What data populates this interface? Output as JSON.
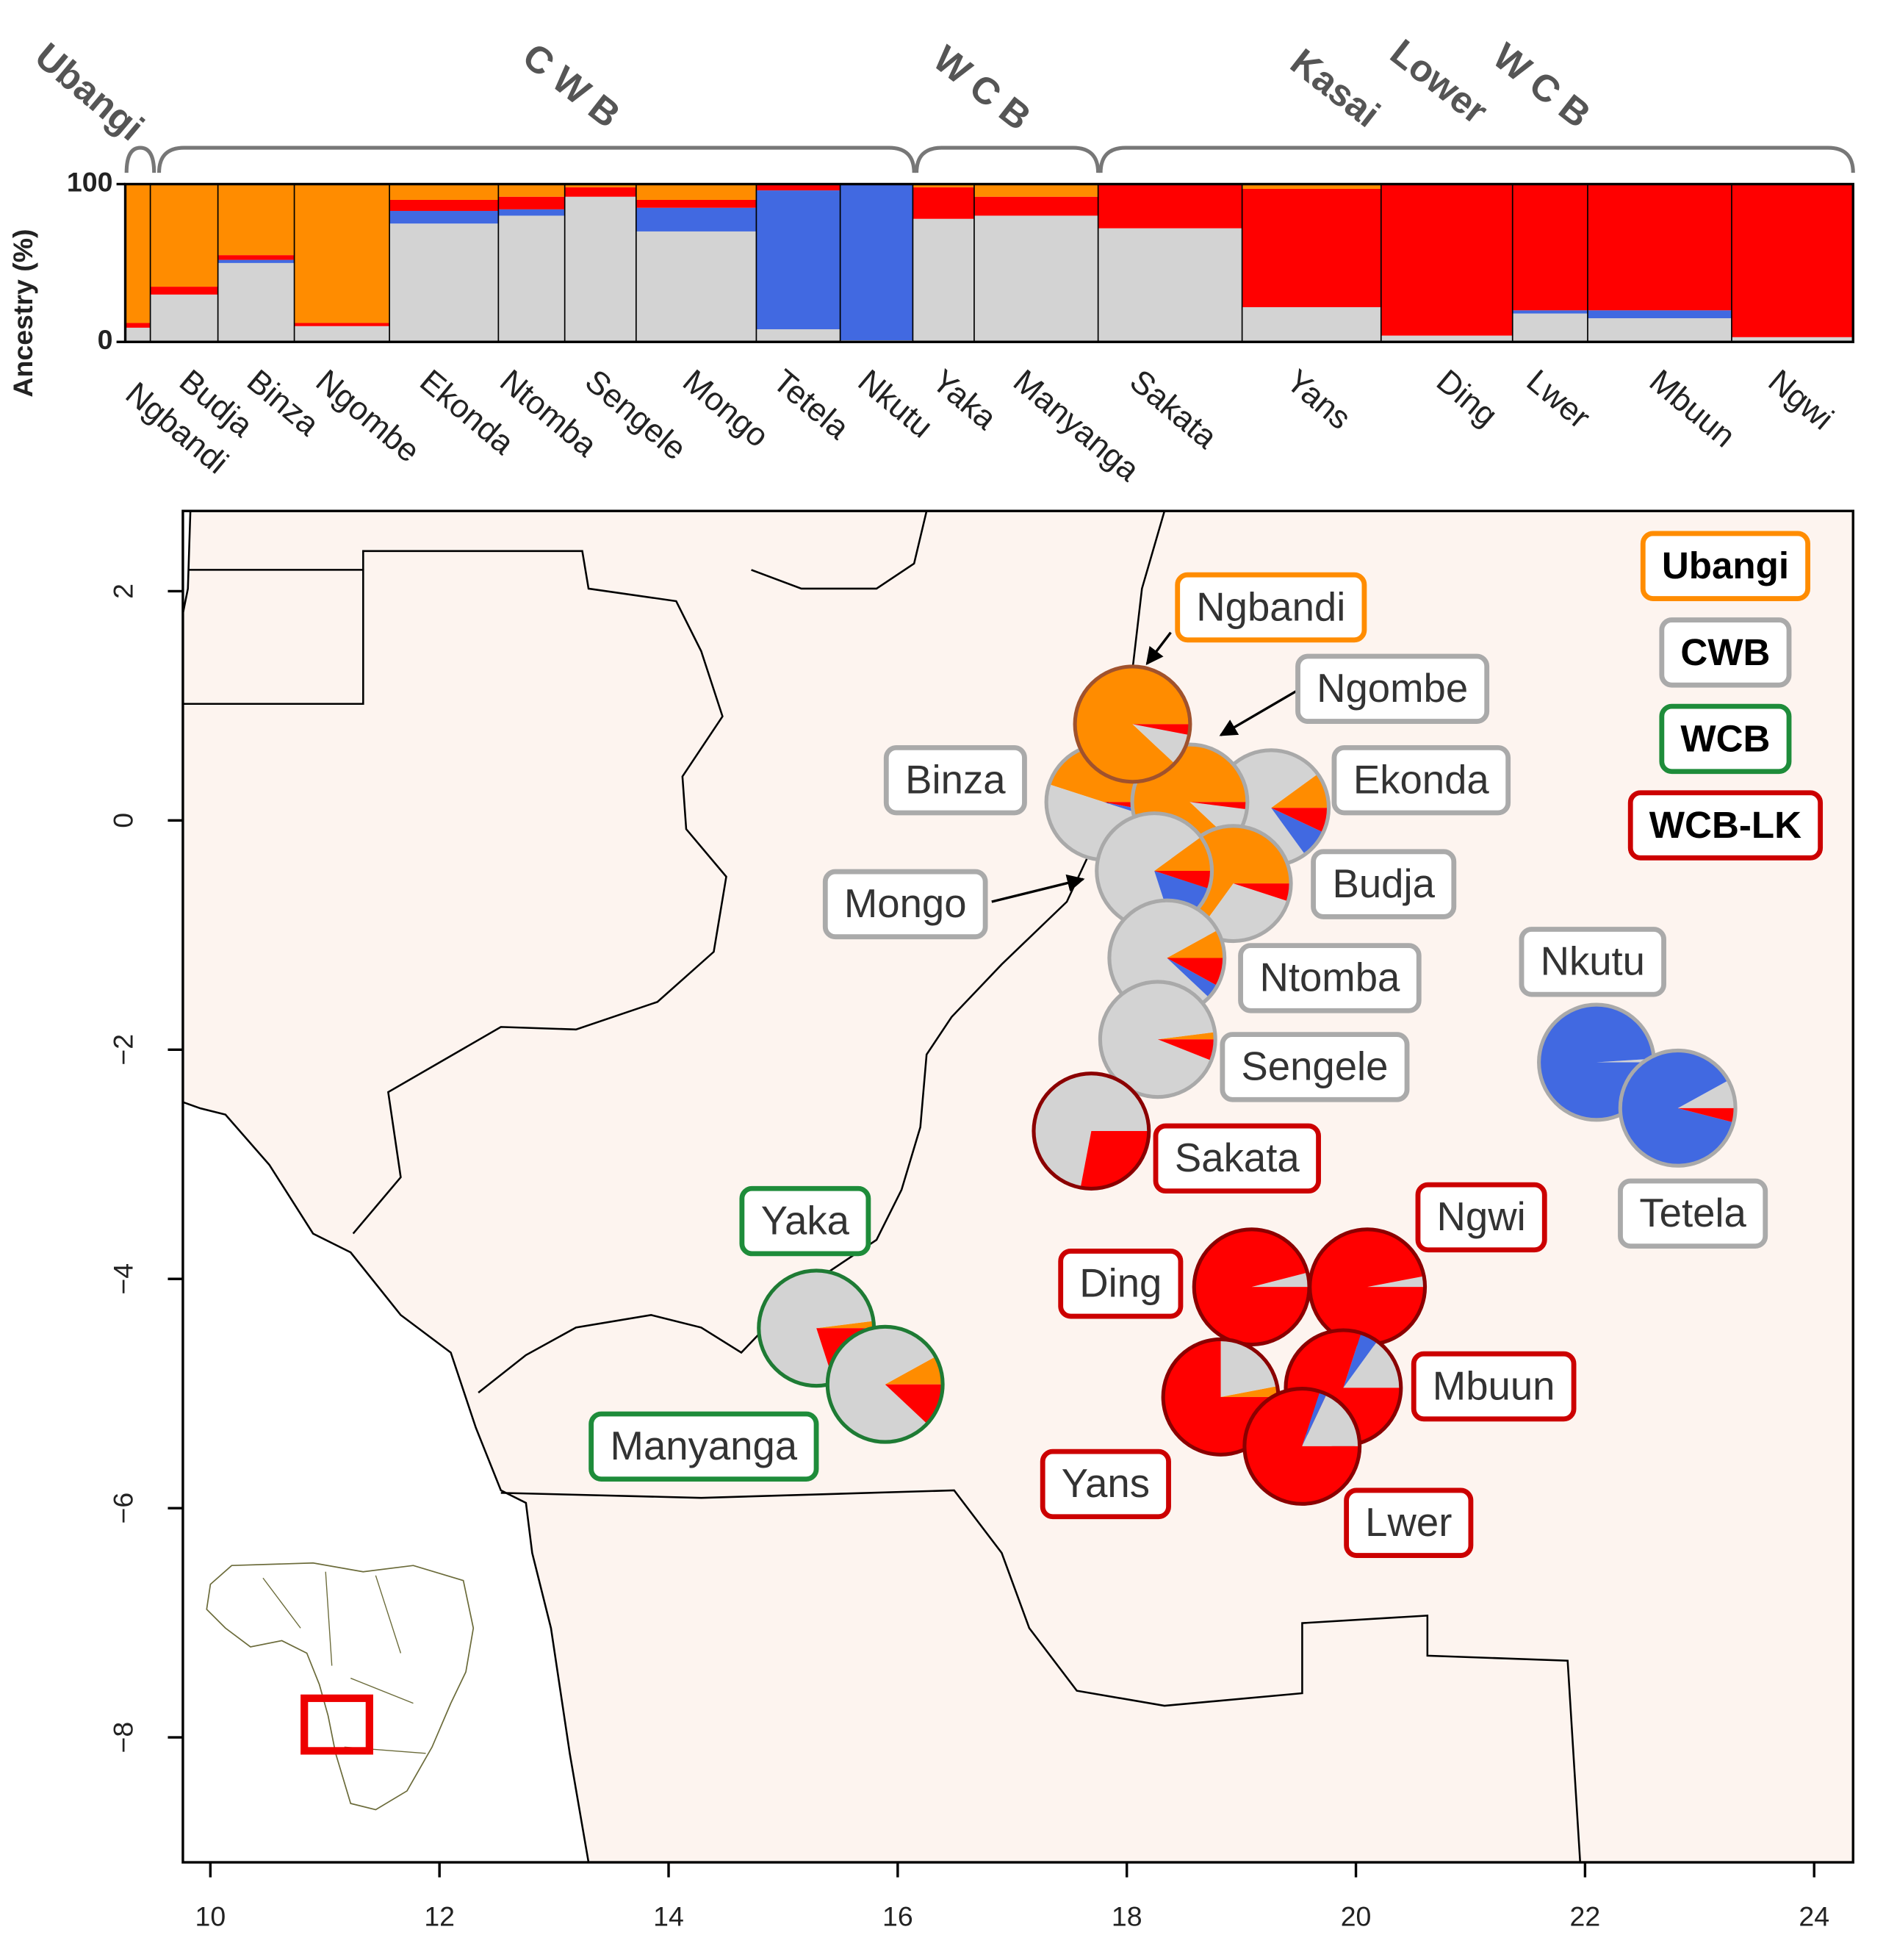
{
  "chart_data": [
    {
      "type": "stacked-bar",
      "ylabel": "Ancestry (%)",
      "ylim": [
        0,
        100
      ],
      "yticks": [
        0,
        100
      ],
      "group_labels": [
        "Ubangi",
        "C W B",
        "W C B",
        "Kasai",
        "Lower",
        "W C B"
      ],
      "categories": [
        "Ngbandi",
        "Budja",
        "Binza",
        "Ngombe",
        "Ekonda",
        "Ntomba",
        "Sengele",
        "Mongo",
        "Tetela",
        "Nkutu",
        "Yaka",
        "Manyanga",
        "Sakata",
        "Yans",
        "Ding",
        "Lwer",
        "Mbuun",
        "Ngwi"
      ],
      "series": [
        {
          "color": "#ff8c00",
          "values": [
            88,
            65,
            45,
            88,
            10,
            8,
            2,
            10,
            0,
            0,
            2,
            8,
            0,
            3,
            0,
            0,
            0,
            0
          ]
        },
        {
          "color": "#d3d3d3",
          "values": [
            9,
            30,
            50,
            10,
            75,
            80,
            92,
            70,
            8,
            1,
            78,
            80,
            72,
            22,
            4,
            18,
            15,
            3
          ]
        },
        {
          "color": "#4169e1",
          "values": [
            0,
            0,
            2,
            0,
            8,
            4,
            0,
            15,
            88,
            99,
            0,
            0,
            0,
            0,
            0,
            2,
            5,
            0
          ]
        },
        {
          "color": "#ff0000",
          "values": [
            3,
            5,
            3,
            2,
            7,
            8,
            6,
            5,
            4,
            0,
            20,
            12,
            28,
            75,
            96,
            80,
            80,
            97
          ]
        }
      ]
    },
    {
      "type": "pie-map",
      "xlim": [
        9.76,
        24.34
      ],
      "ylim": [
        -9.09,
        2.7
      ],
      "xticks": [
        10,
        12,
        14,
        16,
        18,
        20,
        22,
        24
      ],
      "yticks": [
        2,
        0,
        {
          "value": -2,
          "label": "−2"
        },
        {
          "value": -4,
          "label": "−4"
        },
        {
          "value": -6,
          "label": "−6"
        },
        {
          "value": -8,
          "label": "−8"
        }
      ],
      "x": [
        18.05,
        18.93,
        17.8,
        18.55,
        19.26,
        18.35,
        18.27,
        18.24,
        22.81,
        22.1,
        15.29,
        15.89,
        17.69,
        18.82,
        19.09,
        19.53,
        19.89,
        20.1
      ],
      "y": [
        0.84,
        -0.55,
        0.16,
        0.16,
        0.11,
        -1.2,
        -1.91,
        -0.44,
        -2.51,
        -2.11,
        -4.43,
        -4.92,
        -2.71,
        -5.03,
        -4.07,
        -5.46,
        -4.95,
        -4.07
      ],
      "pie_colors": [
        "#a0522d",
        "#a9a9a9",
        "#a9a9a9",
        "#a9a9a9",
        "#a9a9a9",
        "#a9a9a9",
        "#a9a9a9",
        "#a9a9a9",
        "#a9a9a9",
        "#a9a9a9",
        "#1e7b34",
        "#1e7b34",
        "#8b0000",
        "#8b0000",
        "#8b0000",
        "#8b0000",
        "#8b0000",
        "#8b0000"
      ],
      "box_colors": [
        "#ff8c00",
        "#aaaaaa",
        "#aaaaaa",
        "#aaaaaa",
        "#aaaaaa",
        "#aaaaaa",
        "#aaaaaa",
        "#aaaaaa",
        "#aaaaaa",
        "#aaaaaa",
        "#1e8c3a",
        "#1e8c3a",
        "#cc0000",
        "#cc0000",
        "#cc0000",
        "#cc0000",
        "#cc0000",
        "#cc0000"
      ],
      "legend": [
        {
          "name": "Ubangi",
          "color": "#ff8c00"
        },
        {
          "name": "CWB",
          "color": "#aaaaaa"
        },
        {
          "name": "WCB",
          "color": "#1e8c3a"
        },
        {
          "name": "WCB-LK",
          "color": "#cc0000"
        }
      ]
    }
  ]
}
